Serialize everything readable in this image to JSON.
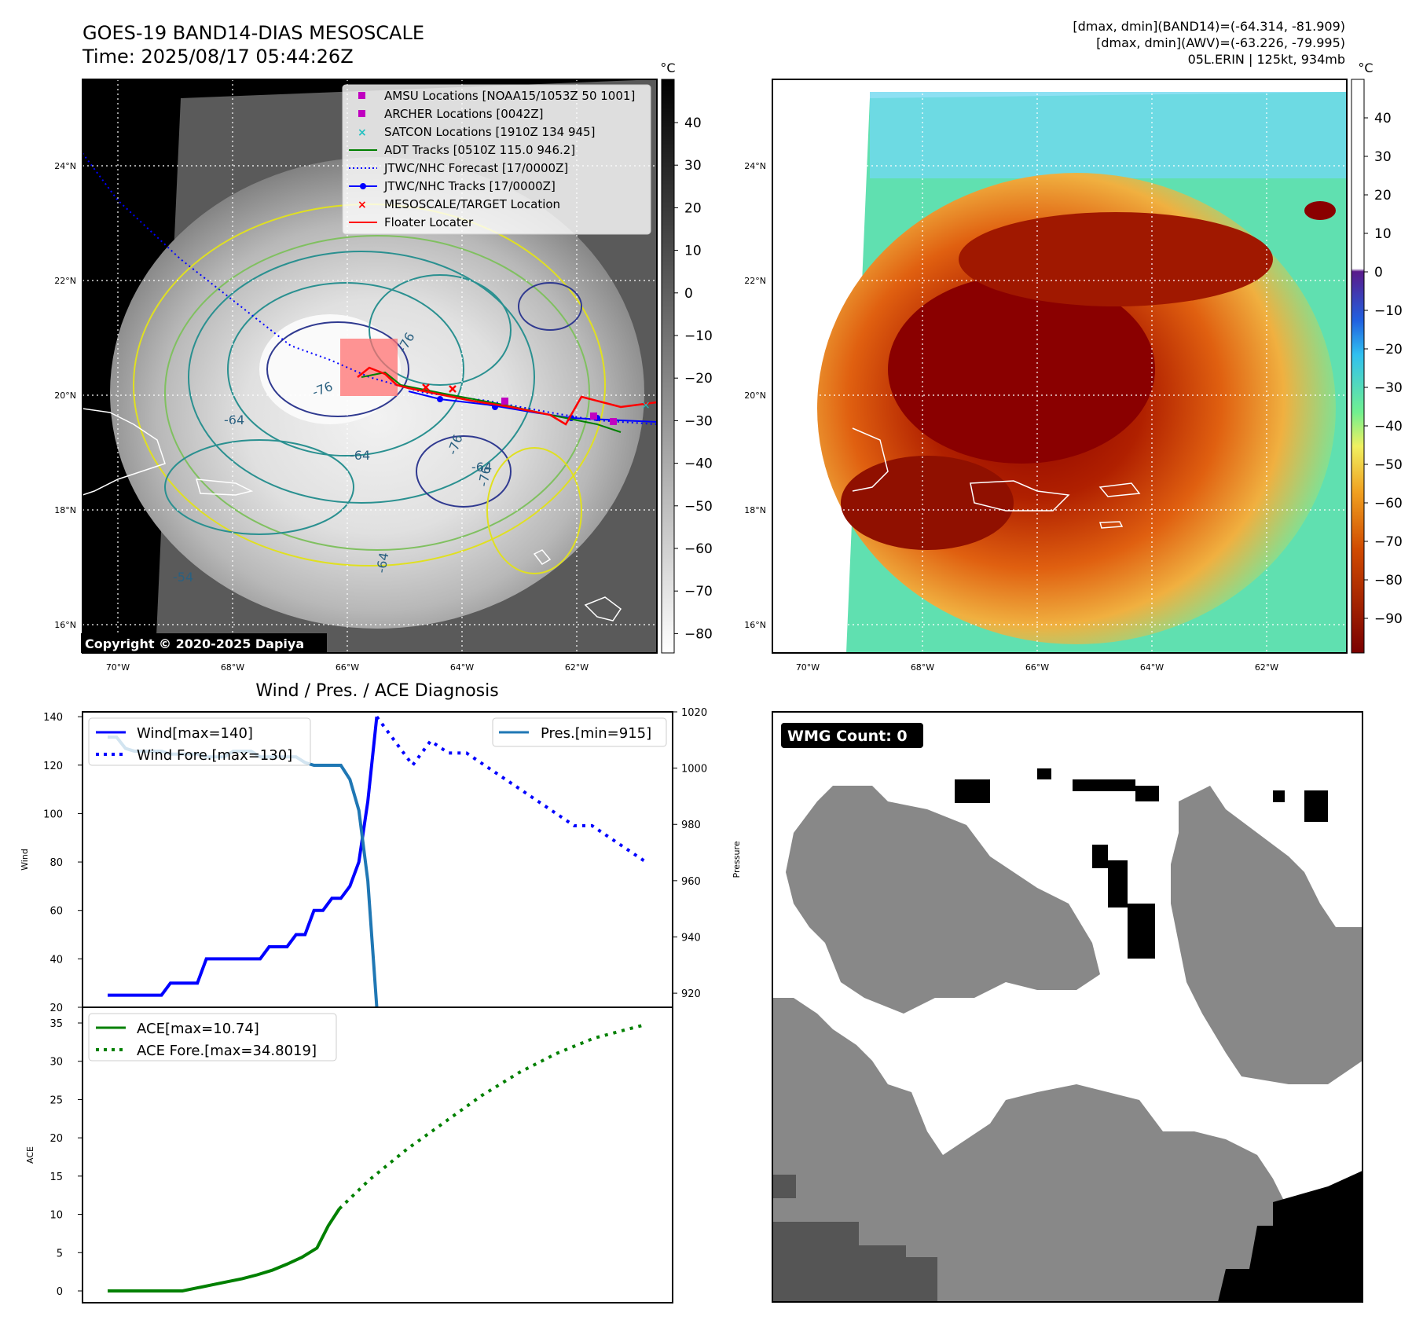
{
  "header": {
    "title": "GOES-19 BAND14-DIAS MESOSCALE",
    "time": "Time: 2025/08/17 05:44:26Z",
    "stat_band14": "[dmax, dmin](BAND14)=(-64.314, -81.909)",
    "stat_awv": "[dmax, dmin](AWV)=(-63.226, -79.995)",
    "storm": "05L.ERIN | 125kt, 934mb"
  },
  "map_left": {
    "copyright": "Copyright © 2020-2025 Dapiya",
    "colorbar_unit": "°C",
    "colorbar_ticks": [
      "40",
      "30",
      "20",
      "10",
      "0",
      "−10",
      "−20",
      "−30",
      "−40",
      "−50",
      "−60",
      "−70",
      "−80"
    ],
    "lat_labels": [
      "24°N",
      "22°N",
      "20°N",
      "18°N",
      "16°N"
    ],
    "lon_labels": [
      "70°W",
      "68°W",
      "66°W",
      "64°W",
      "62°W"
    ],
    "contour_labels": [
      "-76",
      "-76",
      "-76",
      "-64",
      "-64",
      "-64",
      "-54",
      "-76",
      "-64"
    ],
    "legend": [
      {
        "label": "AMSU Locations [NOAA15/1053Z 50 1001]",
        "kind": "square",
        "color": "#c000c0"
      },
      {
        "label": "ARCHER Locations [0042Z]",
        "kind": "square",
        "color": "#c000c0"
      },
      {
        "label": "SATCON Locations [1910Z 134 945]",
        "kind": "x",
        "color": "#20c0c0"
      },
      {
        "label": "ADT Tracks [0510Z 115.0 946.2]",
        "kind": "line",
        "color": "#008000"
      },
      {
        "label": "JTWC/NHC Forecast [17/0000Z]",
        "kind": "dotted",
        "color": "#0000ff"
      },
      {
        "label": "JTWC/NHC Tracks [17/0000Z]",
        "kind": "linedot",
        "color": "#0000ff"
      },
      {
        "label": "MESOSCALE/TARGET Location",
        "kind": "x",
        "color": "#ff0000"
      },
      {
        "label": "Floater Locater",
        "kind": "line",
        "color": "#ff0000"
      }
    ]
  },
  "map_right": {
    "colorbar_unit": "°C",
    "colorbar_ticks": [
      "40",
      "30",
      "20",
      "10",
      "0",
      "−10",
      "−20",
      "−30",
      "−40",
      "−50",
      "−60",
      "−70",
      "−80",
      "−90"
    ],
    "lat_labels": [
      "24°N",
      "22°N",
      "20°N",
      "18°N",
      "16°N"
    ],
    "lon_labels": [
      "70°W",
      "68°W",
      "66°W",
      "64°W",
      "62°W"
    ]
  },
  "wmg": {
    "label": "WMG Count: 0"
  },
  "colors": {
    "wind": "#0000ff",
    "pres": "#1f77b4",
    "ace": "#008000"
  },
  "chart_data": [
    {
      "type": "line",
      "title": "Wind / Pres. / ACE Diagnosis",
      "ylabel": "Wind",
      "ylabel_right": "Pressure",
      "ylim": [
        20,
        142
      ],
      "ylim_right": [
        915,
        1020
      ],
      "yticks": [
        20,
        40,
        60,
        80,
        100,
        120,
        140
      ],
      "yticks_right": [
        920,
        940,
        960,
        980,
        1000,
        1020
      ],
      "legend_left": [
        "Wind[max=140]",
        "Wind Fore.[max=130]"
      ],
      "legend_right": [
        "Pres.[min=915]"
      ],
      "series": [
        {
          "name": "Wind[max=140]",
          "style": "solid",
          "axis": "left",
          "x": [
            0,
            1,
            2,
            3,
            4,
            5,
            6,
            7,
            8,
            9,
            10,
            11,
            12,
            13,
            14,
            15,
            16,
            17,
            18,
            19,
            20,
            21,
            22,
            23,
            24,
            25,
            26,
            27,
            28,
            29,
            30
          ],
          "values": [
            25,
            25,
            25,
            25,
            25,
            25,
            25,
            30,
            30,
            30,
            30,
            40,
            40,
            40,
            40,
            40,
            40,
            40,
            45,
            45,
            45,
            50,
            50,
            60,
            60,
            65,
            65,
            70,
            80,
            105,
            140
          ]
        },
        {
          "name": "Wind Fore.[max=130]",
          "style": "dotted",
          "axis": "left",
          "x": [
            30,
            32,
            34,
            36,
            38,
            40,
            42,
            44,
            46,
            48,
            50,
            52,
            54,
            56,
            58,
            60
          ],
          "values": [
            140,
            130,
            120,
            130,
            125,
            125,
            120,
            115,
            110,
            105,
            100,
            95,
            95,
            90,
            85,
            80
          ]
        },
        {
          "name": "Pres.[min=915]",
          "style": "solid",
          "axis": "right",
          "x": [
            0,
            1,
            2,
            3,
            4,
            5,
            6,
            7,
            8,
            9,
            10,
            11,
            12,
            13,
            14,
            15,
            16,
            17,
            18,
            19,
            20,
            21,
            22,
            23,
            24,
            25,
            26,
            27,
            28,
            29,
            30
          ],
          "values": [
            1011,
            1011,
            1007,
            1006,
            1006,
            1006,
            1006,
            1005,
            1005,
            1005,
            1005,
            1004,
            1004,
            1004,
            1006,
            1006,
            1006,
            1004,
            1004,
            1004,
            1004,
            1004,
            1002,
            1001,
            1001,
            1001,
            1001,
            996,
            985,
            960,
            915
          ]
        }
      ]
    },
    {
      "type": "line",
      "ylabel": "ACE",
      "ylim": [
        0,
        35
      ],
      "yticks": [
        0,
        5,
        10,
        15,
        20,
        25,
        30,
        35
      ],
      "legend": [
        "ACE[max=10.74]",
        "ACE Fore.[max=34.8019]"
      ],
      "series": [
        {
          "name": "ACE[max=10.74]",
          "style": "solid",
          "x": [
            0,
            2,
            4,
            6,
            8,
            10,
            12,
            14,
            16,
            18,
            20,
            22,
            24,
            26,
            28,
            29.5,
            31
          ],
          "values": [
            0,
            0,
            0,
            0,
            0,
            0,
            0.4,
            0.8,
            1.2,
            1.6,
            2.1,
            2.7,
            3.5,
            4.4,
            5.6,
            8.5,
            10.74
          ]
        },
        {
          "name": "ACE Fore.[max=34.8019]",
          "style": "dotted",
          "x": [
            31,
            35,
            40,
            45,
            50,
            55,
            60,
            65,
            70,
            72
          ],
          "values": [
            10.74,
            14.5,
            18.5,
            22,
            25.5,
            28.5,
            31,
            33,
            34.3,
            34.8
          ]
        }
      ]
    }
  ]
}
